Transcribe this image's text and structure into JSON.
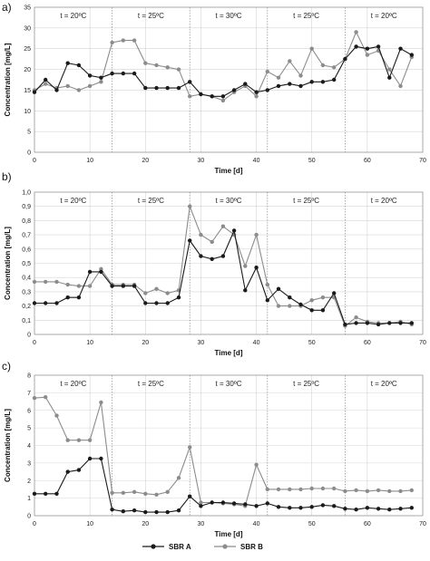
{
  "legend": {
    "series_a": "SBR A",
    "series_b": "SBR B",
    "series_a_color": "#1a1a1a",
    "series_b_color": "#8c8c8c"
  },
  "chart_data": [
    {
      "type": "line",
      "panel_label": "a)",
      "xlabel": "Time [d]",
      "ylabel": "Concentration [mg/L]",
      "xlim": [
        0,
        70
      ],
      "ylim": [
        0,
        35
      ],
      "xticks": [
        0,
        10,
        20,
        30,
        40,
        50,
        60,
        70
      ],
      "yticks": [
        0,
        5,
        10,
        15,
        20,
        25,
        30,
        35
      ],
      "grid": true,
      "phases": [
        {
          "label": "t = 20ºC",
          "start": 0,
          "end": 14
        },
        {
          "label": "t = 25ºC",
          "start": 14,
          "end": 28
        },
        {
          "label": "t = 30ºC",
          "start": 28,
          "end": 42
        },
        {
          "label": "t = 25ºC",
          "start": 42,
          "end": 56
        },
        {
          "label": "t = 20ºC",
          "start": 56,
          "end": 70
        }
      ],
      "series": [
        {
          "name": "SBR A",
          "x": [
            0,
            2,
            4,
            6,
            8,
            10,
            12,
            14,
            16,
            18,
            20,
            22,
            24,
            26,
            28,
            30,
            32,
            34,
            36,
            38,
            40,
            42,
            44,
            46,
            48,
            50,
            52,
            54,
            56,
            58,
            60,
            62,
            64,
            66,
            68
          ],
          "y": [
            14.5,
            17.5,
            15,
            21.5,
            21,
            18.5,
            18,
            19,
            19,
            19,
            15.5,
            15.5,
            15.5,
            15.5,
            17,
            14,
            13.5,
            13.5,
            15,
            16.5,
            14.5,
            15,
            16,
            16.5,
            16,
            17,
            17,
            17.5,
            22.5,
            25.5,
            25,
            25.5,
            18,
            25,
            23.5
          ]
        },
        {
          "name": "SBR B",
          "x": [
            0,
            2,
            4,
            6,
            8,
            10,
            12,
            14,
            16,
            18,
            20,
            22,
            24,
            26,
            28,
            30,
            32,
            34,
            36,
            38,
            40,
            42,
            44,
            46,
            48,
            50,
            52,
            54,
            56,
            58,
            60,
            62,
            64,
            66,
            68
          ],
          "y": [
            15,
            16.5,
            15.5,
            16,
            15,
            16,
            17,
            26.5,
            27,
            27,
            21.5,
            21,
            20.5,
            20,
            13.5,
            14,
            13.5,
            12.5,
            14.5,
            16,
            13.5,
            19.5,
            18,
            22,
            18.5,
            25,
            21,
            20.5,
            22.5,
            29,
            23.5,
            24.5,
            20,
            16,
            23
          ]
        }
      ]
    },
    {
      "type": "line",
      "panel_label": "b)",
      "xlabel": "Time [d]",
      "ylabel": "Concentration [mg/L]",
      "xlim": [
        0,
        70
      ],
      "ylim": [
        0,
        1.0
      ],
      "xticks": [
        0,
        10,
        20,
        30,
        40,
        50,
        60,
        70
      ],
      "yticks": [
        0,
        0.1,
        0.2,
        0.3,
        0.4,
        0.5,
        0.6,
        0.7,
        0.8,
        0.9,
        1.0
      ],
      "ytick_labels": [
        "0",
        "0,1",
        "0,2",
        "0,3",
        "0,4",
        "0,5",
        "0,6",
        "0,7",
        "0,8",
        "0,9",
        "1,0"
      ],
      "grid": true,
      "phases": [
        {
          "label": "t = 20ºC",
          "start": 0,
          "end": 14
        },
        {
          "label": "t = 25ºC",
          "start": 14,
          "end": 28
        },
        {
          "label": "t = 30ºC",
          "start": 28,
          "end": 42
        },
        {
          "label": "t = 25ºC",
          "start": 42,
          "end": 56
        },
        {
          "label": "t = 20ºC",
          "start": 56,
          "end": 70
        }
      ],
      "series": [
        {
          "name": "SBR A",
          "x": [
            0,
            2,
            4,
            6,
            8,
            10,
            12,
            14,
            16,
            18,
            20,
            22,
            24,
            26,
            28,
            30,
            32,
            34,
            36,
            38,
            40,
            42,
            44,
            46,
            48,
            50,
            52,
            54,
            56,
            58,
            60,
            62,
            64,
            66,
            68
          ],
          "y": [
            0.22,
            0.22,
            0.22,
            0.26,
            0.26,
            0.44,
            0.44,
            0.34,
            0.34,
            0.34,
            0.22,
            0.22,
            0.22,
            0.26,
            0.66,
            0.55,
            0.53,
            0.55,
            0.73,
            0.31,
            0.47,
            0.24,
            0.32,
            0.26,
            0.21,
            0.17,
            0.17,
            0.29,
            0.07,
            0.08,
            0.08,
            0.07,
            0.08,
            0.08,
            0.08
          ]
        },
        {
          "name": "SBR B",
          "x": [
            0,
            2,
            4,
            6,
            8,
            10,
            12,
            14,
            16,
            18,
            20,
            22,
            24,
            26,
            28,
            30,
            32,
            34,
            36,
            38,
            40,
            42,
            44,
            46,
            48,
            50,
            52,
            54,
            56,
            58,
            60,
            62,
            64,
            66,
            68
          ],
          "y": [
            0.37,
            0.37,
            0.37,
            0.35,
            0.34,
            0.34,
            0.46,
            0.35,
            0.35,
            0.35,
            0.29,
            0.32,
            0.29,
            0.31,
            0.9,
            0.7,
            0.65,
            0.76,
            0.7,
            0.48,
            0.7,
            0.35,
            0.2,
            0.2,
            0.2,
            0.24,
            0.26,
            0.26,
            0.06,
            0.12,
            0.09,
            0.08,
            0.08,
            0.09,
            0.07
          ]
        }
      ]
    },
    {
      "type": "line",
      "panel_label": "c)",
      "xlabel": "Time [d]",
      "ylabel": "Concentration [mg/L]",
      "xlim": [
        0,
        70
      ],
      "ylim": [
        0,
        8
      ],
      "xticks": [
        0,
        10,
        20,
        30,
        40,
        50,
        60,
        70
      ],
      "yticks": [
        0,
        1,
        2,
        3,
        4,
        5,
        6,
        7,
        8
      ],
      "grid": true,
      "phases": [
        {
          "label": "t = 20ºC",
          "start": 0,
          "end": 14
        },
        {
          "label": "t = 25ºC",
          "start": 14,
          "end": 28
        },
        {
          "label": "t = 30ºC",
          "start": 28,
          "end": 42
        },
        {
          "label": "t = 25ºC",
          "start": 42,
          "end": 56
        },
        {
          "label": "t = 20ºC",
          "start": 56,
          "end": 70
        }
      ],
      "series": [
        {
          "name": "SBR A",
          "x": [
            0,
            2,
            4,
            6,
            8,
            10,
            12,
            14,
            16,
            18,
            20,
            22,
            24,
            26,
            28,
            30,
            32,
            34,
            36,
            38,
            40,
            42,
            44,
            46,
            48,
            50,
            52,
            54,
            56,
            58,
            60,
            62,
            64,
            66,
            68
          ],
          "y": [
            1.25,
            1.25,
            1.25,
            2.5,
            2.6,
            3.25,
            3.25,
            0.35,
            0.25,
            0.3,
            0.2,
            0.2,
            0.2,
            0.3,
            1.1,
            0.55,
            0.75,
            0.75,
            0.7,
            0.65,
            0.55,
            0.7,
            0.5,
            0.45,
            0.45,
            0.5,
            0.6,
            0.55,
            0.4,
            0.35,
            0.45,
            0.4,
            0.35,
            0.4,
            0.45
          ]
        },
        {
          "name": "SBR B",
          "x": [
            0,
            2,
            4,
            6,
            8,
            10,
            12,
            14,
            16,
            18,
            20,
            22,
            24,
            26,
            28,
            30,
            32,
            34,
            36,
            38,
            40,
            42,
            44,
            46,
            48,
            50,
            52,
            54,
            56,
            58,
            60,
            62,
            64,
            66,
            68
          ],
          "y": [
            6.7,
            6.75,
            5.7,
            4.3,
            4.3,
            4.3,
            6.45,
            1.3,
            1.3,
            1.35,
            1.25,
            1.2,
            1.35,
            2.15,
            3.9,
            0.75,
            0.75,
            0.7,
            0.65,
            0.55,
            2.9,
            1.5,
            1.5,
            1.5,
            1.5,
            1.55,
            1.55,
            1.55,
            1.4,
            1.45,
            1.4,
            1.45,
            1.4,
            1.4,
            1.45
          ]
        }
      ]
    }
  ]
}
